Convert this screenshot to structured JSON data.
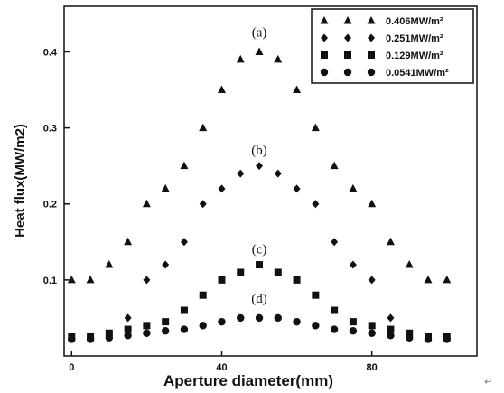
{
  "chart_data": {
    "type": "scatter",
    "xlabel": "Aperture diameter(mm)",
    "ylabel": "Heat flux(MW/m2)",
    "xlim": [
      -2,
      108
    ],
    "ylim": [
      0,
      0.46
    ],
    "x_ticks": [
      "0",
      "40",
      "80"
    ],
    "x_tick_values": [
      0,
      40,
      80
    ],
    "y_ticks": [
      "0.1",
      "0.2",
      "0.3",
      "0.4"
    ],
    "y_tick_values": [
      0.1,
      0.2,
      0.3,
      0.4
    ],
    "grid": false,
    "legend_position": "top-right",
    "series": [
      {
        "name": "0.406MW/m²",
        "marker": "triangle",
        "annotation": "(a)",
        "x": [
          0,
          5,
          10,
          15,
          20,
          25,
          30,
          35,
          40,
          45,
          50,
          55,
          60,
          65,
          70,
          75,
          80,
          85,
          90,
          95,
          100
        ],
        "y": [
          0.1,
          0.1,
          0.12,
          0.15,
          0.2,
          0.22,
          0.25,
          0.3,
          0.35,
          0.39,
          0.4,
          0.39,
          0.35,
          0.3,
          0.25,
          0.22,
          0.2,
          0.15,
          0.12,
          0.1,
          0.1
        ]
      },
      {
        "name": "0.251MW/m²",
        "marker": "diamond",
        "annotation": "(b)",
        "x": [
          15,
          20,
          25,
          30,
          35,
          40,
          45,
          50,
          55,
          60,
          65,
          70,
          75,
          80,
          85
        ],
        "y": [
          0.05,
          0.1,
          0.12,
          0.15,
          0.2,
          0.22,
          0.24,
          0.25,
          0.24,
          0.22,
          0.2,
          0.15,
          0.12,
          0.1,
          0.05
        ]
      },
      {
        "name": "0.129MW/m²",
        "marker": "square",
        "annotation": "(c)",
        "x": [
          0,
          5,
          10,
          15,
          20,
          25,
          30,
          35,
          40,
          45,
          50,
          55,
          60,
          65,
          70,
          75,
          80,
          85,
          90,
          95,
          100
        ],
        "y": [
          0.025,
          0.025,
          0.03,
          0.035,
          0.04,
          0.045,
          0.06,
          0.08,
          0.1,
          0.11,
          0.12,
          0.11,
          0.1,
          0.08,
          0.06,
          0.045,
          0.04,
          0.035,
          0.03,
          0.025,
          0.025
        ]
      },
      {
        "name": "0.0541MW/m²",
        "marker": "circle",
        "annotation": "(d)",
        "x": [
          0,
          5,
          10,
          15,
          20,
          25,
          30,
          35,
          40,
          45,
          50,
          55,
          60,
          65,
          70,
          75,
          80,
          85,
          90,
          95,
          100
        ],
        "y": [
          0.022,
          0.022,
          0.024,
          0.027,
          0.03,
          0.033,
          0.035,
          0.04,
          0.045,
          0.05,
          0.05,
          0.05,
          0.045,
          0.04,
          0.035,
          0.033,
          0.03,
          0.027,
          0.024,
          0.022,
          0.022
        ]
      }
    ],
    "annotations": [
      {
        "text": "(a)",
        "x": 50,
        "y": 0.42
      },
      {
        "text": "(b)",
        "x": 50,
        "y": 0.265
      },
      {
        "text": "(c)",
        "x": 50,
        "y": 0.135
      },
      {
        "text": "(d)",
        "x": 50,
        "y": 0.07
      }
    ]
  },
  "corner_mark": "↵"
}
